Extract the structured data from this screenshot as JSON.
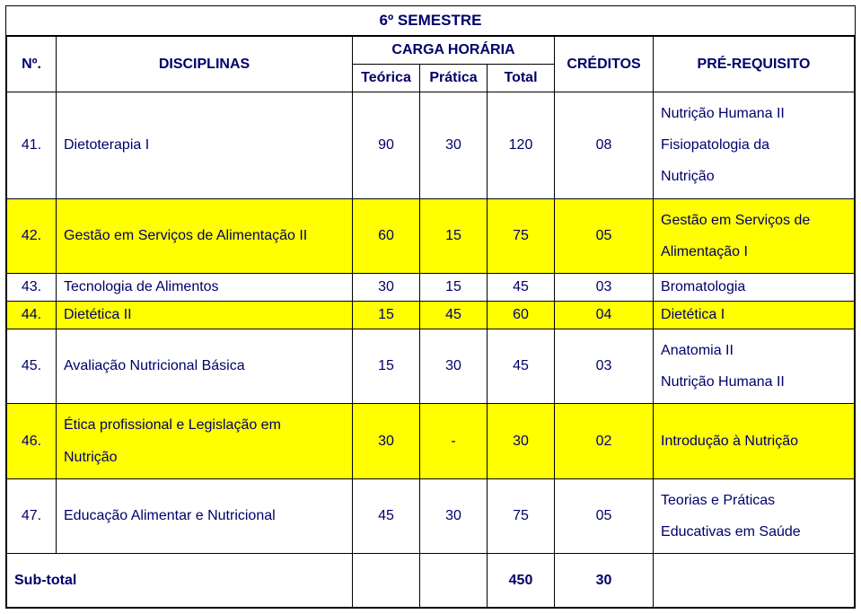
{
  "colors": {
    "text": "#00006a",
    "highlight": "#ffff00",
    "white": "#ffffff",
    "border": "#000000"
  },
  "title": "6º SEMESTRE",
  "headers": {
    "no": "Nº.",
    "disciplinas": "DISCIPLINAS",
    "carga_horaria": "CARGA HORÁRIA",
    "teorica": "Teórica",
    "pratica": "Prática",
    "total": "Total",
    "creditos": "CRÉDITOS",
    "prerequisito": "PRÉ-REQUISITO"
  },
  "rows": [
    {
      "no": "41.",
      "name": "Dietoterapia I",
      "teorica": "90",
      "pratica": "30",
      "total": "120",
      "creditos": "08",
      "prereq_lines": [
        "Nutrição Humana II",
        "Fisiopatologia da",
        "Nutrição"
      ],
      "bg": "white"
    },
    {
      "no": "42.",
      "name": "Gestão em Serviços de Alimentação II",
      "teorica": "60",
      "pratica": "15",
      "total": "75",
      "creditos": "05",
      "prereq_lines": [
        "Gestão em Serviços de",
        "Alimentação I"
      ],
      "bg": "yellow"
    },
    {
      "no": "43.",
      "name": "Tecnologia de Alimentos",
      "teorica": "30",
      "pratica": "15",
      "total": "45",
      "creditos": "03",
      "prereq": "Bromatologia",
      "bg": "white"
    },
    {
      "no": "44.",
      "name": "Dietética II",
      "teorica": "15",
      "pratica": "45",
      "total": "60",
      "creditos": "04",
      "prereq": "Dietética I",
      "bg": "yellow"
    },
    {
      "no": "45.",
      "name": "Avaliação Nutricional Básica",
      "teorica": "15",
      "pratica": "30",
      "total": "45",
      "creditos": "03",
      "prereq_lines": [
        "Anatomia II",
        "Nutrição Humana II"
      ],
      "bg": "white"
    },
    {
      "no": "46.",
      "name_lines": [
        "Ética profissional e Legislação em",
        "Nutrição"
      ],
      "teorica": "30",
      "pratica": "-",
      "total": "30",
      "creditos": "02",
      "prereq": "Introdução à Nutrição",
      "bg": "yellow"
    },
    {
      "no": "47.",
      "name": "Educação Alimentar e Nutricional",
      "teorica": "45",
      "pratica": "30",
      "total": "75",
      "creditos": "05",
      "prereq_lines": [
        "Teorias e Práticas",
        "Educativas em Saúde"
      ],
      "bg": "white"
    }
  ],
  "subtotal": {
    "label": "Sub-total",
    "total": "450",
    "creditos": "30"
  }
}
